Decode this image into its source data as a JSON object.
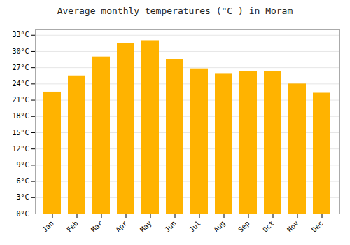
{
  "chart_data": {
    "type": "bar",
    "title": "Average monthly temperatures (°C ) in Moram",
    "categories": [
      "Jan",
      "Feb",
      "Mar",
      "Apr",
      "May",
      "Jun",
      "Jul",
      "Aug",
      "Sep",
      "Oct",
      "Nov",
      "Dec"
    ],
    "values": [
      22.5,
      25.5,
      29.0,
      31.5,
      32.0,
      28.5,
      26.8,
      25.8,
      26.3,
      26.3,
      24.0,
      22.3
    ],
    "color": "#FFB300",
    "ylim": [
      0,
      34
    ],
    "yticks": [
      {
        "value": 0,
        "label": "0°C"
      },
      {
        "value": 3,
        "label": "3°C"
      },
      {
        "value": 6,
        "label": "6°C"
      },
      {
        "value": 9,
        "label": "9°C"
      },
      {
        "value": 12,
        "label": "12°C"
      },
      {
        "value": 15,
        "label": "15°C"
      },
      {
        "value": 18,
        "label": "18°C"
      },
      {
        "value": 21,
        "label": "21°C"
      },
      {
        "value": 24,
        "label": "24°C"
      },
      {
        "value": 27,
        "label": "27°C"
      },
      {
        "value": 30,
        "label": "30°C"
      },
      {
        "value": 33,
        "label": "33°C"
      }
    ],
    "grid": true
  }
}
